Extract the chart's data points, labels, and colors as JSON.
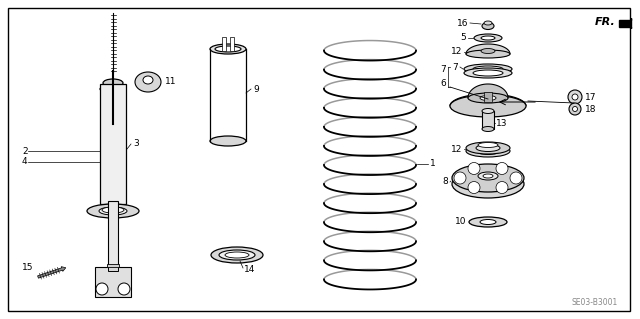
{
  "bg_color": "#ffffff",
  "line_color": "#000000",
  "part_color": "#e8e8e8",
  "watermark": "SE03-B3001",
  "figsize": [
    6.4,
    3.19
  ],
  "dpi": 100
}
